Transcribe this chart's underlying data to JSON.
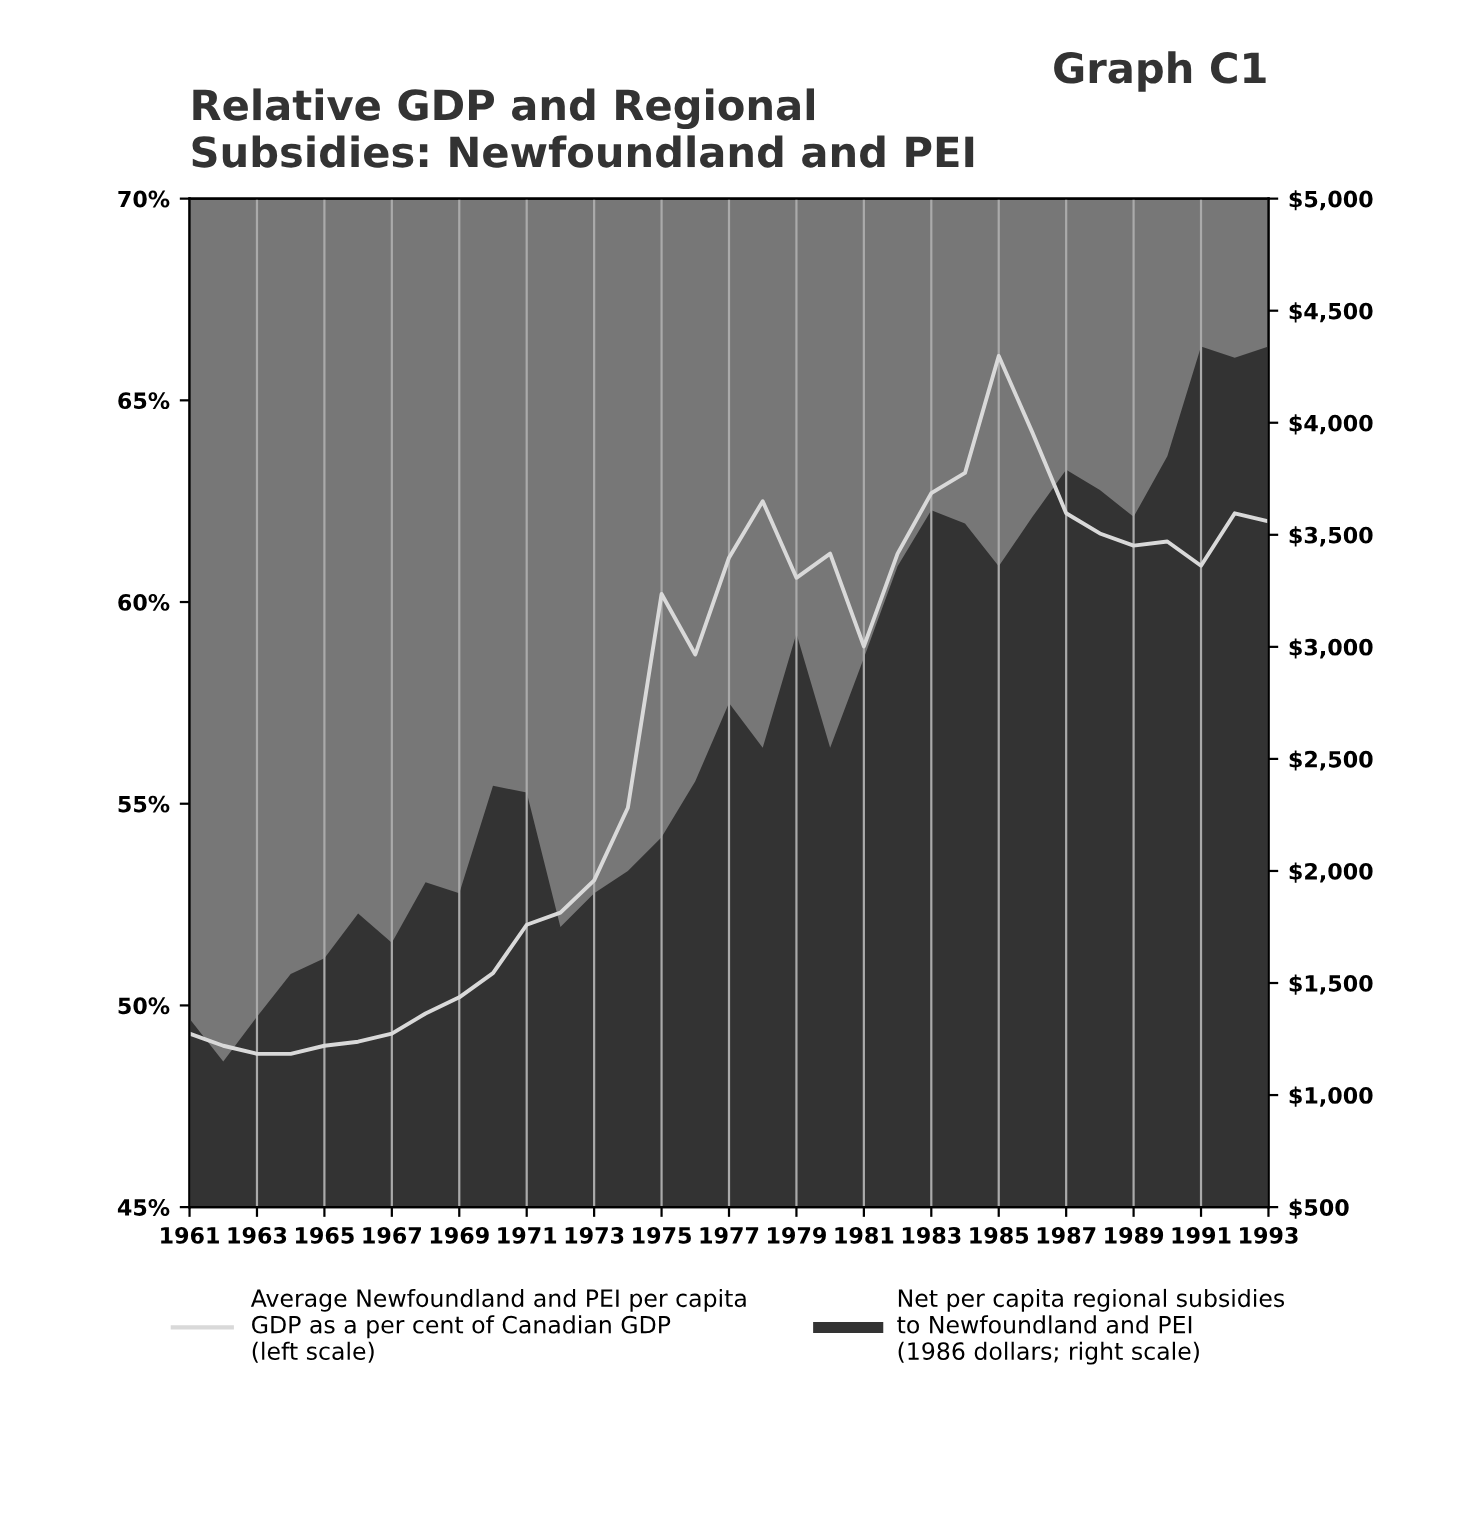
{
  "chart_data": {
    "type": "line",
    "title": "Relative GDP and Regional\nSubsidies: Newfoundland and PEI",
    "annotations": [
      "Graph C1"
    ],
    "x": [
      1961,
      1962,
      1963,
      1964,
      1965,
      1966,
      1967,
      1968,
      1969,
      1970,
      1971,
      1972,
      1973,
      1974,
      1975,
      1976,
      1977,
      1978,
      1979,
      1980,
      1981,
      1982,
      1983,
      1984,
      1985,
      1986,
      1987,
      1988,
      1989,
      1990,
      1991,
      1992,
      1993
    ],
    "series": [
      {
        "name": "Net per capita regional subsidies\nto Newfoundland and PEI\n(1986 dollars; right scale)",
        "type": "area",
        "axis": "y2",
        "color": "#333333",
        "values": [
          1340,
          1150,
          1350,
          1540,
          1610,
          1810,
          1680,
          1950,
          1900,
          2380,
          2350,
          1750,
          1900,
          2000,
          2150,
          2400,
          2750,
          2550,
          3060,
          2550,
          2950,
          3360,
          3610,
          3550,
          3360,
          3580,
          3790,
          3700,
          3580,
          3850,
          4340,
          4290,
          4340
        ]
      },
      {
        "name": "Average Newfoundland and PEI per capita\nGDP as a per cent of Canadian GDP\n(left scale)",
        "color": "#d9d9d9",
        "values": [
          49.3,
          49.0,
          48.8,
          48.8,
          49.0,
          49.1,
          49.3,
          49.8,
          50.2,
          50.8,
          52.0,
          52.3,
          53.1,
          54.9,
          60.2,
          58.7,
          61.1,
          62.5,
          60.6,
          61.2,
          58.9,
          61.2,
          62.7,
          63.2,
          66.1,
          64.2,
          62.2,
          61.7,
          61.4,
          61.5,
          60.9,
          62.2,
          62.0
        ]
      }
    ],
    "xlim": [
      1961,
      1993
    ],
    "xticks": [
      1961,
      1963,
      1965,
      1967,
      1969,
      1971,
      1973,
      1975,
      1977,
      1979,
      1981,
      1983,
      1985,
      1987,
      1989,
      1991,
      1993
    ],
    "ylim": [
      45,
      70
    ],
    "yticks": [
      {
        "value": 45,
        "label": "45%"
      },
      {
        "value": 50,
        "label": "50%"
      },
      {
        "value": 55,
        "label": "55%"
      },
      {
        "value": 60,
        "label": "60%"
      },
      {
        "value": 65,
        "label": "65%"
      },
      {
        "value": 70,
        "label": "70%"
      }
    ],
    "y2lim": [
      500,
      5000
    ],
    "y2ticks": [
      {
        "value": 500,
        "label": "$500"
      },
      {
        "value": 1000,
        "label": "$1,000"
      },
      {
        "value": 1500,
        "label": "$1,500"
      },
      {
        "value": 2000,
        "label": "$2,000"
      },
      {
        "value": 2500,
        "label": "$2,500"
      },
      {
        "value": 3000,
        "label": "$3,000"
      },
      {
        "value": 3500,
        "label": "$3,500"
      },
      {
        "value": 4000,
        "label": "$4,000"
      },
      {
        "value": 4500,
        "label": "$4,500"
      },
      {
        "value": 5000,
        "label": "$5,000"
      }
    ],
    "grid": "x",
    "legend": "bottom"
  }
}
